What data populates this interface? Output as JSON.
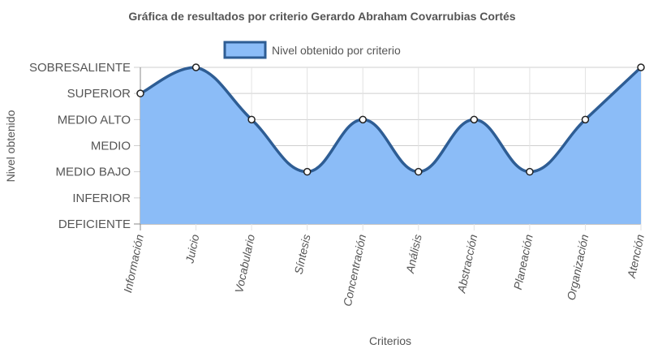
{
  "chart_data": {
    "type": "area",
    "title": "Gráfica de resultados por criterio Gerardo Abraham Covarrubias Cortés",
    "xlabel": "Criterios",
    "ylabel": "Nivel obtenido",
    "levels": [
      "DEFICIENTE",
      "INFERIOR",
      "MEDIO BAJO",
      "MEDIO",
      "MEDIO ALTO",
      "SUPERIOR",
      "SOBRESALIENTE"
    ],
    "categories": [
      "Información",
      "Juicio",
      "Vocabulario",
      "Síntesis",
      "Concentración",
      "Análisis",
      "Abstracción",
      "Planeación",
      "Organización",
      "Atención"
    ],
    "series": [
      {
        "name": "Nivel obtenido por criterio",
        "values": [
          "SUPERIOR",
          "SOBRESALIENTE",
          "MEDIO ALTO",
          "MEDIO BAJO",
          "MEDIO ALTO",
          "MEDIO BAJO",
          "MEDIO ALTO",
          "MEDIO BAJO",
          "MEDIO ALTO",
          "SOBRESALIENTE"
        ]
      }
    ],
    "legend": "top",
    "grid": true,
    "colors": {
      "fill": "#8bbcf7",
      "line": "#2e5d94",
      "point_fill": "#ffffff",
      "point_stroke": "#222222"
    }
  }
}
